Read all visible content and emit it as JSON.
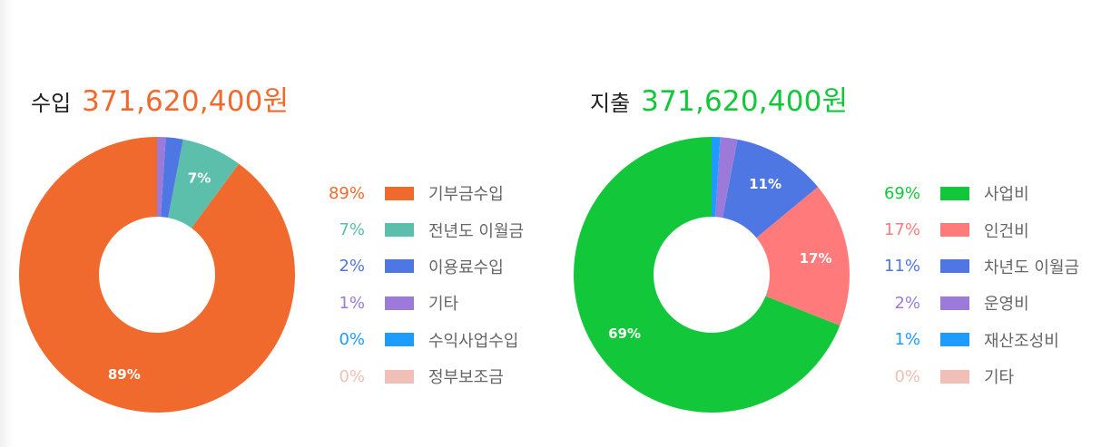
{
  "chart_data": [
    {
      "type": "pie",
      "donut": true,
      "header_label": "수입",
      "header_amount": "371,620,400원",
      "accent_color": "#f06a2e",
      "slice_labels_shown": [
        "89%",
        "7%"
      ],
      "slices": [
        {
          "name": "기부금수입",
          "value": 89,
          "label": "89%",
          "color": "#f06a2e"
        },
        {
          "name": "전년도 이월금",
          "value": 7,
          "label": "7%",
          "color": "#5bbfab"
        },
        {
          "name": "이용료수입",
          "value": 2,
          "label": "2%",
          "color": "#4f77e3"
        },
        {
          "name": "기타",
          "value": 1,
          "label": "1%",
          "color": "#9c7ad9"
        },
        {
          "name": "수익사업수입",
          "value": 0,
          "label": "0%",
          "color": "#1e9bff"
        },
        {
          "name": "정부보조금",
          "value": 0,
          "label": "0%",
          "color": "#f0bfb5"
        }
      ]
    },
    {
      "type": "pie",
      "donut": true,
      "header_label": "지출",
      "header_amount": "371,620,400원",
      "accent_color": "#12c83a",
      "slice_labels_shown": [
        "69%",
        "17%",
        "11%"
      ],
      "slices": [
        {
          "name": "사업비",
          "value": 69,
          "label": "69%",
          "color": "#12c83a"
        },
        {
          "name": "인건비",
          "value": 17,
          "label": "17%",
          "color": "#ff7b7b"
        },
        {
          "name": "차년도 이월금",
          "value": 11,
          "label": "11%",
          "color": "#4f77e3"
        },
        {
          "name": "운영비",
          "value": 2,
          "label": "2%",
          "color": "#9c7ad9"
        },
        {
          "name": "재산조성비",
          "value": 1,
          "label": "1%",
          "color": "#1e9bff"
        },
        {
          "name": "기타",
          "value": 0,
          "label": "0%",
          "color": "#f0bfb5"
        }
      ]
    }
  ]
}
